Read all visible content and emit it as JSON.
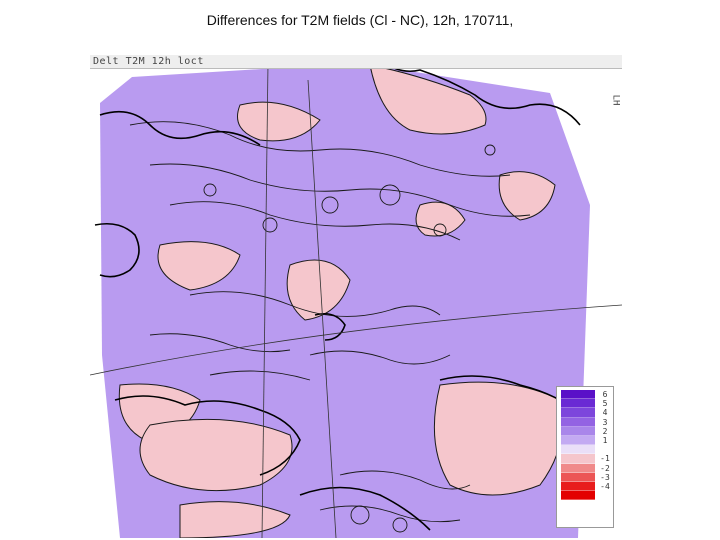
{
  "slide": {
    "title": "Differences for T2M fields (Cl - NC), 12h, 170711,"
  },
  "map": {
    "header_text": "Delt T2M 12h loct",
    "fill_color": "#b99bf0",
    "positive_color": "#f5c6cc",
    "contour_color": "#1a1a1a",
    "coast_color": "#000000"
  },
  "legend": {
    "labels": [
      "6",
      "5",
      "4",
      "3",
      "2",
      "1",
      "",
      "-1",
      "-2",
      "-3",
      "-4"
    ],
    "swatches": [
      "#5a10c8",
      "#6a2ad4",
      "#7d46dc",
      "#9363e3",
      "#a986ea",
      "#c3aaf2",
      "#eadff8",
      "#f5c6cc",
      "#f08a8a",
      "#ec5656",
      "#e81d1d",
      "#e30000"
    ]
  }
}
